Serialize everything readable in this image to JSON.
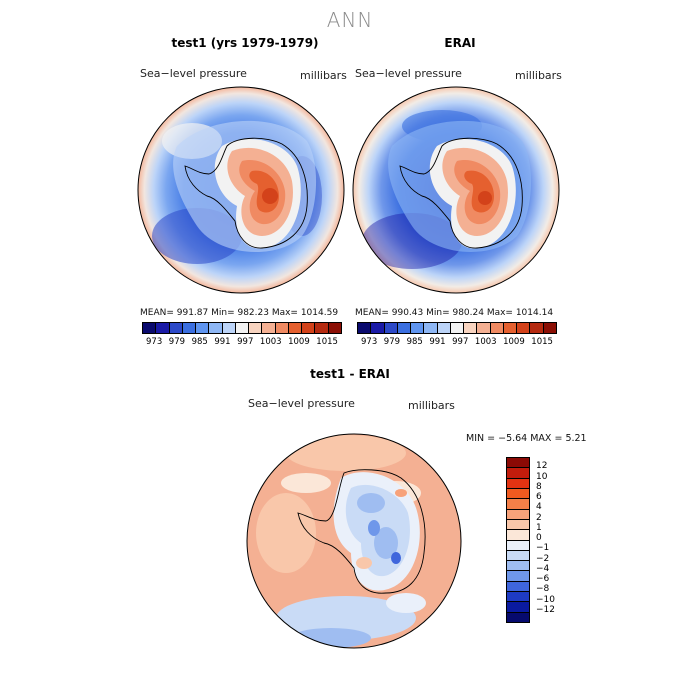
{
  "title": "ANN",
  "panels": [
    {
      "title": "test1 (yrs 1979-1979)",
      "variable": "Sea−level pressure",
      "units": "millibars",
      "stats": "MEAN= 991.87   Min= 982.23   Max= 1014.59"
    },
    {
      "title": "ERAI",
      "variable": "Sea−level pressure",
      "units": "millibars",
      "stats": "MEAN= 990.43   Min= 980.24   Max= 1014.14"
    }
  ],
  "diff": {
    "title": "test1 - ERAI",
    "variable": "Sea−level pressure",
    "units": "millibars",
    "stats": "MIN =    −5.64  MAX =     5.21"
  },
  "abs_colorbar": {
    "ticks": [
      "973",
      "979",
      "985",
      "991",
      "997",
      "1003",
      "1009",
      "1015"
    ],
    "colors": [
      "#0a0a6e",
      "#1a1aa6",
      "#2c49c8",
      "#3b6fe0",
      "#5f95f0",
      "#8eb7f5",
      "#bcd4f8",
      "#f2f2f2",
      "#f8d4c0",
      "#f4b093",
      "#f08a62",
      "#e5602f",
      "#d3421a",
      "#b52a10",
      "#8b0f05"
    ]
  },
  "diff_colorbar": {
    "ticks": [
      "12",
      "10",
      "8",
      "6",
      "4",
      "2",
      "1",
      "0",
      "−1",
      "−2",
      "−4",
      "−6",
      "−8",
      "−10",
      "−12"
    ],
    "colors": [
      "#8b0a05",
      "#c21c0c",
      "#e23312",
      "#f05a20",
      "#f47f48",
      "#f7a27a",
      "#f9c7aa",
      "#fbe7d8",
      "#eaf0fa",
      "#c9dbf6",
      "#9fbdf1",
      "#6f97ea",
      "#3f66dc",
      "#1e3bc4",
      "#0a1aa0",
      "#060a6e"
    ]
  }
}
